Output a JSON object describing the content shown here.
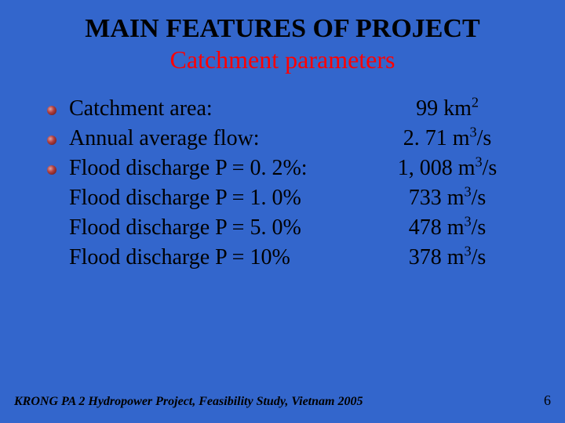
{
  "title": "MAIN FEATURES OF PROJECT",
  "subtitle": "Catchment parameters",
  "rows": [
    {
      "bullet": true,
      "label": "Catchment area:",
      "value_pre": "99 km",
      "value_sup": "2",
      "value_post": ""
    },
    {
      "bullet": true,
      "label": "Annual average flow:",
      "value_pre": "2. 71 m",
      "value_sup": "3",
      "value_post": "/s"
    },
    {
      "bullet": true,
      "label": "Flood discharge P = 0. 2%:",
      "value_pre": "1, 008 m",
      "value_sup": "3",
      "value_post": "/s"
    },
    {
      "bullet": false,
      "label": "Flood discharge P = 1. 0%",
      "value_pre": "733 m",
      "value_sup": "3",
      "value_post": "/s"
    },
    {
      "bullet": false,
      "label": "Flood discharge P = 5. 0%",
      "value_pre": "478 m",
      "value_sup": "3",
      "value_post": "/s"
    },
    {
      "bullet": false,
      "label": "Flood discharge P = 10%",
      "value_pre": "378 m",
      "value_sup": "3",
      "value_post": "/s"
    }
  ],
  "footer": "KRONG PA 2 Hydropower Project, Feasibility Study, Vietnam 2005",
  "page": "6",
  "colors": {
    "background": "#3366cc",
    "title": "#000000",
    "subtitle": "#ff0000",
    "body": "#000000"
  },
  "fonts": {
    "title_size": 34,
    "subtitle_size": 32,
    "body_size": 28,
    "footer_size": 16
  }
}
